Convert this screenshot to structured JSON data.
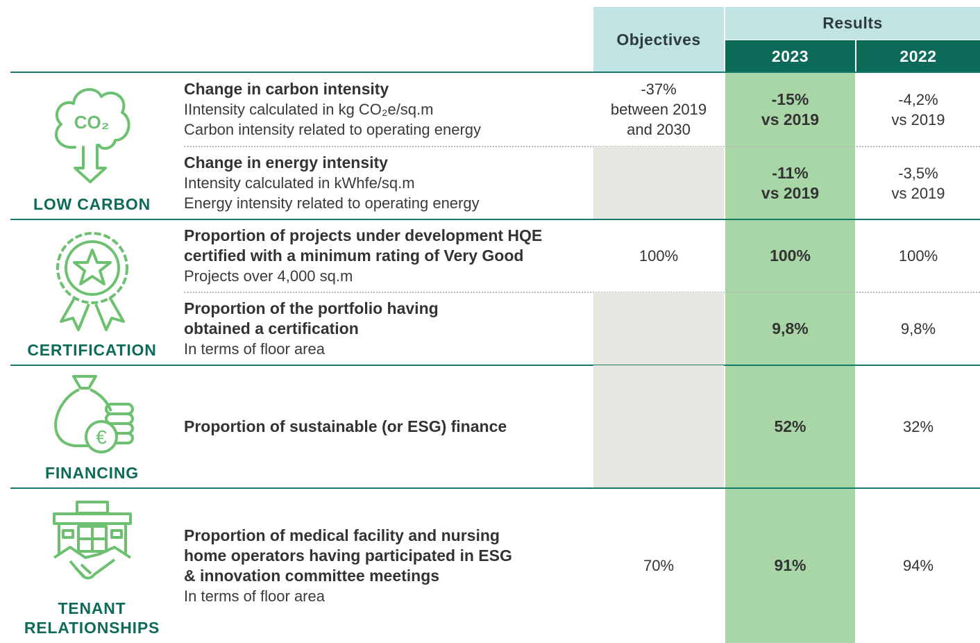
{
  "header": {
    "objectives": "Objectives",
    "results": "Results",
    "years": [
      "2023",
      "2022"
    ]
  },
  "sections": [
    {
      "category": [
        "LOW CARBON"
      ],
      "icon_text": "CO₂",
      "rows": [
        {
          "title": [
            "Change in carbon intensity"
          ],
          "lines": [
            "IIntensity calculated in kg CO₂e/sq.m",
            "Carbon intensity related to operating energy"
          ],
          "objective": [
            "-37%",
            "between 2019",
            "and 2030"
          ],
          "result_2023": [
            "-15%",
            "vs 2019"
          ],
          "result_2022": [
            "-4,2%",
            "vs 2019"
          ]
        },
        {
          "title": [
            "Change in energy intensity"
          ],
          "lines": [
            "Intensity calculated in kWhfe/sq.m",
            "Energy intensity related to operating energy"
          ],
          "result_2023": [
            "-11%",
            "vs 2019"
          ],
          "result_2022": [
            "-3,5%",
            "vs 2019"
          ]
        }
      ]
    },
    {
      "category": [
        "CERTIFICATION"
      ],
      "rows": [
        {
          "title": [
            "Proportion of projects under development HQE",
            "certified with a minimum rating of Very Good"
          ],
          "lines": [
            "Projects over 4,000 sq.m"
          ],
          "objective": [
            "100%"
          ],
          "result_2023": [
            "100%"
          ],
          "result_2022": [
            "100%"
          ]
        },
        {
          "title": [
            "Proportion of the portfolio having",
            "obtained a certification"
          ],
          "lines": [
            "In terms of floor area"
          ],
          "result_2023": [
            "9,8%"
          ],
          "result_2022": [
            "9,8%"
          ]
        }
      ]
    },
    {
      "category": [
        "FINANCING"
      ],
      "rows": [
        {
          "title": [
            "Proportion of sustainable (or ESG) finance"
          ],
          "lines": [],
          "result_2023": [
            "52%"
          ],
          "result_2022": [
            "32%"
          ]
        }
      ]
    },
    {
      "category": [
        "TENANT",
        "RELATIONSHIPS"
      ],
      "rows": [
        {
          "title": [
            "Proportion of medical facility and nursing",
            "home operators having participated in ESG",
            "& innovation committee meetings"
          ],
          "lines": [
            "In terms of floor area"
          ],
          "objective": [
            "70%"
          ],
          "result_2023": [
            "91%"
          ],
          "result_2022": [
            "94%"
          ]
        }
      ]
    }
  ]
}
